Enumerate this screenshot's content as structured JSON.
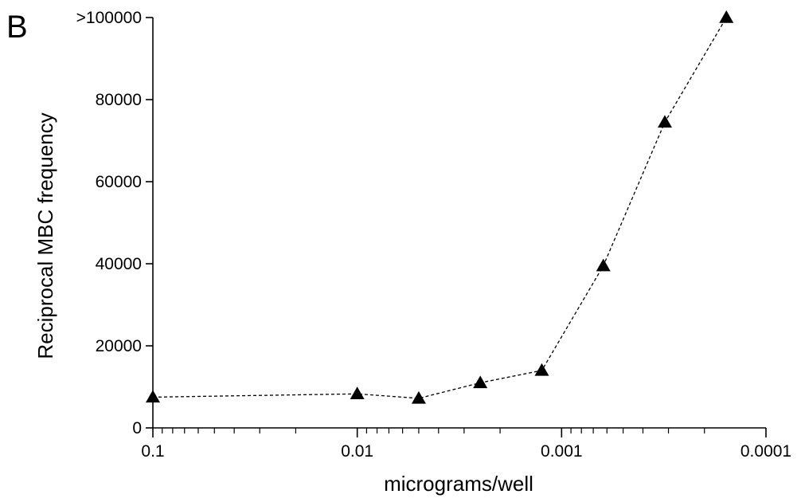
{
  "panel_label": "B",
  "chart_data": {
    "type": "line",
    "title": "",
    "xlabel": "micrograms/well",
    "ylabel": "Reciprocal MBC frequency",
    "x_scale": "log",
    "x_reversed": true,
    "xlim": [
      0.1,
      0.0001
    ],
    "ylim": [
      0,
      100000
    ],
    "grid": false,
    "legend": "none",
    "x_tick_labels": [
      "0.1",
      "0.01",
      "0.001",
      "0.0001"
    ],
    "y_tick_labels": [
      "0",
      "20000",
      "40000",
      "60000",
      "80000",
      ">100000"
    ],
    "series": [
      {
        "marker": "triangle",
        "line_style": "dashed",
        "color": "#000000",
        "x": [
          0.1,
          0.01,
          0.005,
          0.0025,
          0.00125,
          0.000625,
          0.0003125,
          0.00015625
        ],
        "y": [
          7500,
          8300,
          7200,
          11000,
          14000,
          39500,
          74500,
          100000
        ]
      }
    ]
  }
}
